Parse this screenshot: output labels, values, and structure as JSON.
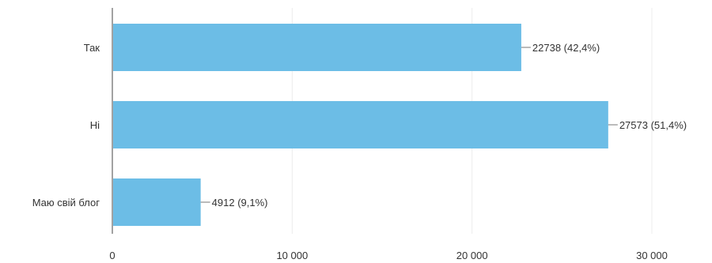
{
  "chart_data": {
    "type": "bar",
    "orientation": "horizontal",
    "categories": [
      "Так",
      "Ні",
      "Маю свій блог"
    ],
    "values": [
      22738,
      27573,
      4912
    ],
    "data_labels": [
      "22738 (42,4%)",
      "27573 (51,4%)",
      "4912 (9,1%)"
    ],
    "xlim": [
      0,
      30000
    ],
    "x_ticks": [
      0,
      10000,
      20000,
      30000
    ],
    "x_tick_labels": [
      "0",
      "10 000",
      "20 000",
      "30 000"
    ],
    "grid": true,
    "bar_color": "#6cbde6",
    "legend": "none"
  }
}
